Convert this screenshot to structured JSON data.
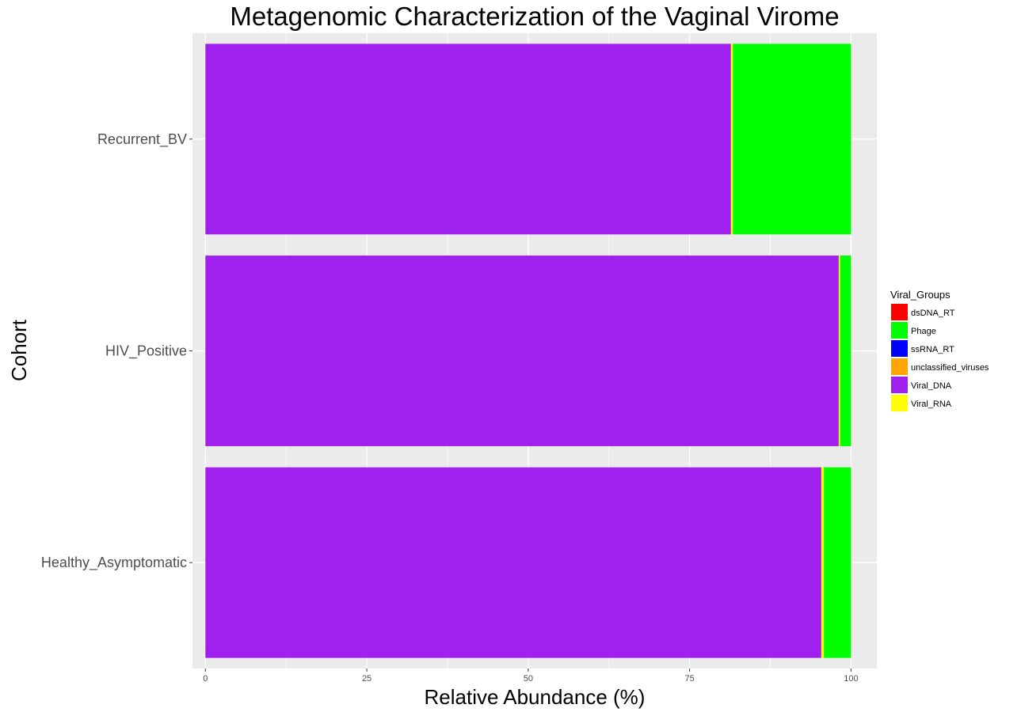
{
  "chart_data": {
    "type": "bar",
    "orientation": "horizontal",
    "stacked": true,
    "title": "Metagenomic Characterization of the Vaginal Virome",
    "xlabel": "Relative Abundance (%)",
    "ylabel": "Cohort",
    "xlim": [
      -2,
      104
    ],
    "xticks": [
      "0",
      "25",
      "50",
      "75",
      "100"
    ],
    "grid": true,
    "legend_position": "right",
    "legend_title": "Viral_Groups",
    "categories": [
      "Recurrent_BV",
      "HIV_Positive",
      "Healthy_Asymptomatic"
    ],
    "series": [
      {
        "name": "dsDNA_RT",
        "color": "#FF0000",
        "values": [
          0.0,
          0.0,
          0.0
        ]
      },
      {
        "name": "Phage",
        "color": "#00FF00",
        "values": [
          18.3,
          1.7,
          4.2
        ]
      },
      {
        "name": "ssRNA_RT",
        "color": "#0000FF",
        "values": [
          0.0,
          0.0,
          0.0
        ]
      },
      {
        "name": "unclassified_viruses",
        "color": "#FFA500",
        "values": [
          0.0,
          0.0,
          0.0
        ]
      },
      {
        "name": "Viral_DNA",
        "color": "#A020F0",
        "values": [
          81.4,
          98.1,
          95.4
        ]
      },
      {
        "name": "Viral_RNA",
        "color": "#FFFF00",
        "values": [
          0.3,
          0.2,
          0.4
        ]
      }
    ],
    "stack_order": [
      "Viral_DNA",
      "Viral_RNA",
      "Phage",
      "unclassified_viruses",
      "ssRNA_RT",
      "dsDNA_RT"
    ]
  }
}
